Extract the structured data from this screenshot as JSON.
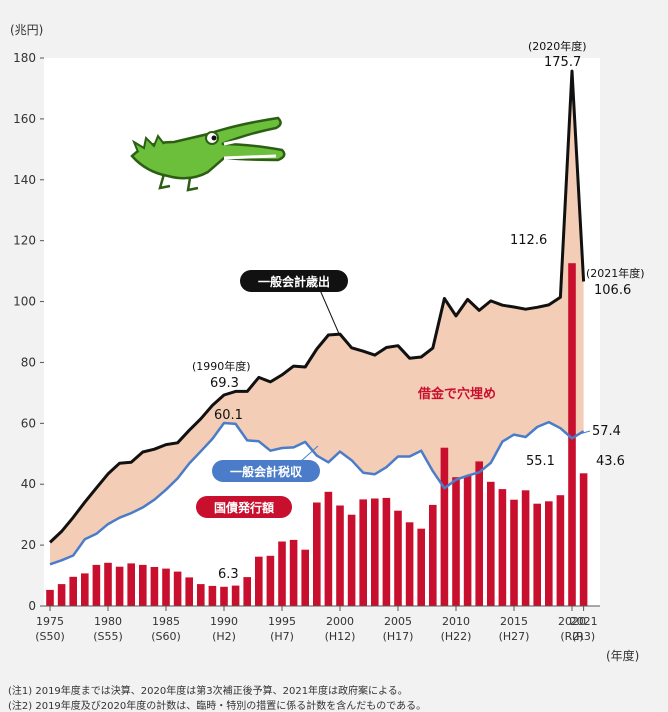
{
  "chart_data": {
    "type": "bar+line",
    "yunit": "(兆円)",
    "xunit": "(年度)",
    "ylim": [
      0,
      180
    ],
    "yticks": [
      0,
      20,
      40,
      60,
      80,
      100,
      120,
      140,
      160,
      180
    ],
    "years": [
      1975,
      1976,
      1977,
      1978,
      1979,
      1980,
      1981,
      1982,
      1983,
      1984,
      1985,
      1986,
      1987,
      1988,
      1989,
      1990,
      1991,
      1992,
      1993,
      1994,
      1995,
      1996,
      1997,
      1998,
      1999,
      2000,
      2001,
      2002,
      2003,
      2004,
      2005,
      2006,
      2007,
      2008,
      2009,
      2010,
      2011,
      2012,
      2013,
      2014,
      2015,
      2016,
      2017,
      2018,
      2019,
      2020,
      2021
    ],
    "xticks": [
      {
        "year": 1975,
        "label": "1975",
        "era": "(S50)"
      },
      {
        "year": 1980,
        "label": "1980",
        "era": "(S55)"
      },
      {
        "year": 1985,
        "label": "1985",
        "era": "(S60)"
      },
      {
        "year": 1990,
        "label": "1990",
        "era": "(H2)"
      },
      {
        "year": 1995,
        "label": "1995",
        "era": "(H7)"
      },
      {
        "year": 2000,
        "label": "2000",
        "era": "(H12)"
      },
      {
        "year": 2005,
        "label": "2005",
        "era": "(H17)"
      },
      {
        "year": 2010,
        "label": "2010",
        "era": "(H22)"
      },
      {
        "year": 2015,
        "label": "2015",
        "era": "(H27)"
      },
      {
        "year": 2020,
        "label": "2020",
        "era": "(R2)"
      },
      {
        "year": 2021,
        "label": "2021",
        "era": "(R3)"
      }
    ],
    "series": [
      {
        "name": "一般会計歳出",
        "type": "line",
        "color": "#111111",
        "values": [
          20.9,
          24.5,
          29.1,
          34.1,
          38.8,
          43.4,
          46.9,
          47.2,
          50.6,
          51.5,
          53.0,
          53.6,
          57.7,
          61.5,
          65.9,
          69.3,
          70.5,
          70.5,
          75.1,
          73.6,
          75.9,
          78.8,
          78.5,
          84.4,
          89.0,
          89.3,
          84.8,
          83.7,
          82.4,
          84.9,
          85.5,
          81.4,
          81.8,
          84.7,
          101.0,
          95.3,
          100.7,
          97.1,
          100.2,
          98.8,
          98.2,
          97.5,
          98.1,
          98.9,
          101.4,
          175.7,
          106.6
        ]
      },
      {
        "name": "一般会計税収",
        "type": "line",
        "color": "#4a7cc9",
        "values": [
          13.7,
          15.0,
          16.6,
          21.9,
          23.7,
          26.9,
          29.0,
          30.5,
          32.4,
          34.9,
          38.2,
          41.9,
          46.8,
          50.8,
          54.9,
          60.1,
          59.8,
          54.4,
          54.1,
          51.0,
          51.9,
          52.1,
          53.9,
          49.4,
          47.2,
          50.7,
          47.9,
          43.8,
          43.3,
          45.6,
          49.1,
          49.1,
          51.0,
          44.3,
          38.7,
          41.5,
          42.8,
          43.9,
          47.0,
          54.0,
          56.3,
          55.5,
          58.8,
          60.4,
          58.4,
          55.1,
          57.4
        ]
      },
      {
        "name": "国債発行額",
        "type": "bar",
        "color": "#c8102e",
        "values": [
          5.3,
          7.2,
          9.6,
          10.7,
          13.5,
          14.2,
          12.9,
          14.0,
          13.5,
          12.8,
          12.3,
          11.3,
          9.4,
          7.2,
          6.6,
          6.3,
          6.7,
          9.5,
          16.2,
          16.5,
          21.2,
          21.7,
          18.5,
          34.0,
          37.5,
          33.0,
          30.0,
          35.0,
          35.3,
          35.5,
          31.3,
          27.5,
          25.4,
          33.2,
          52.0,
          42.3,
          42.8,
          47.5,
          40.8,
          38.4,
          34.9,
          38.0,
          33.6,
          34.4,
          36.4,
          112.6,
          43.6
        ]
      }
    ],
    "annotations": [
      {
        "id": "ann_1990_year",
        "text": "(1990年度)"
      },
      {
        "id": "ann_1990_exp",
        "text": "69.3"
      },
      {
        "id": "ann_1990_tax",
        "text": "60.1"
      },
      {
        "id": "ann_1990_bond",
        "text": "6.3"
      },
      {
        "id": "ann_2020_year",
        "text": "(2020年度)"
      },
      {
        "id": "ann_2020_exp",
        "text": "175.7"
      },
      {
        "id": "ann_2020_bond",
        "text": "112.6"
      },
      {
        "id": "ann_2021_year",
        "text": "(2021年度)"
      },
      {
        "id": "ann_2021_exp",
        "text": "106.6"
      },
      {
        "id": "ann_2020_tax",
        "text": "55.1"
      },
      {
        "id": "ann_2021_tax",
        "text": "57.4"
      },
      {
        "id": "ann_2021_bond",
        "text": "43.6"
      }
    ],
    "gap_label": "借金で穴埋め",
    "legend_labels": {
      "expenditure": "一般会計歳出",
      "tax": "一般会計税収",
      "bonds": "国債発行額"
    },
    "fill_color": "#f4cdb6",
    "mascot_icon": "crocodile-icon"
  },
  "notes": [
    "(注1) 2019年度までは決算、2020年度は第3次補正後予算、2021年度は政府案による。",
    "(注2) 2019年度及び2020年度の計数は、臨時・特別の措置に係る計数を含んだものである。"
  ]
}
